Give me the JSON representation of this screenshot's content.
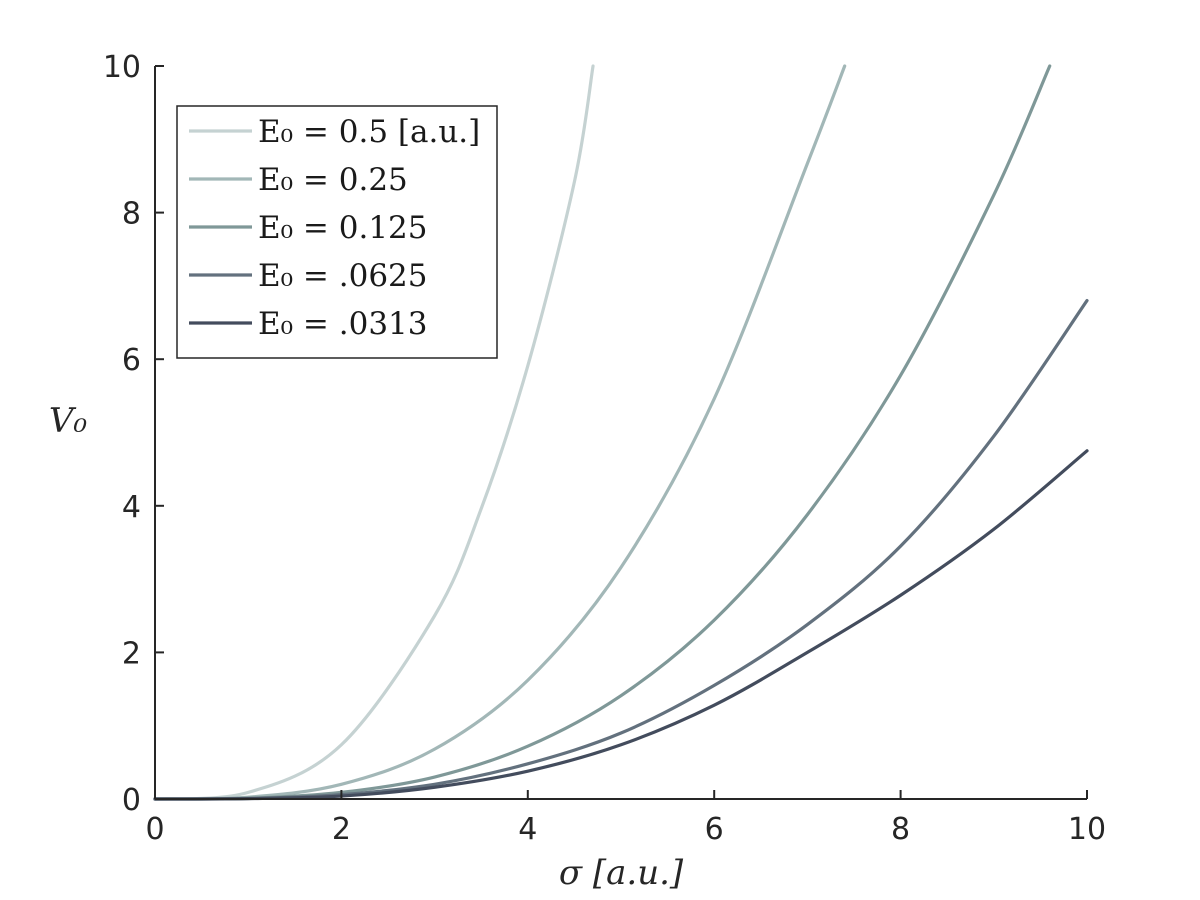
{
  "chart_data": {
    "type": "line",
    "xlabel": "σ [a.u.]",
    "ylabel": "V₀",
    "xlim": [
      0,
      10
    ],
    "ylim": [
      0,
      10
    ],
    "x_ticks": [
      "0",
      "2",
      "4",
      "6",
      "8",
      "10"
    ],
    "y_ticks": [
      "0",
      "2",
      "4",
      "6",
      "8",
      "10"
    ],
    "grid": false,
    "legend_position": "top-left",
    "series": [
      {
        "name": "E₀ = 0.5 [a.u.]",
        "color": "#c5d2d2",
        "x": [
          0,
          1,
          2,
          3,
          3.5,
          4,
          4.5,
          4.7
        ],
        "y": [
          0,
          0.09,
          0.74,
          2.5,
          3.96,
          5.91,
          8.42,
          10.0
        ]
      },
      {
        "name": "E₀ = 0.25",
        "color": "#a2b7b7",
        "x": [
          0,
          1,
          2,
          3,
          4,
          5,
          6,
          7,
          7.4
        ],
        "y": [
          0,
          0.025,
          0.2,
          0.68,
          1.62,
          3.16,
          5.46,
          8.67,
          10.0
        ]
      },
      {
        "name": "E₀ = 0.125",
        "color": "#7f9898",
        "x": [
          0,
          1,
          2,
          3,
          4,
          5,
          6,
          7,
          8,
          9,
          9.6
        ],
        "y": [
          0,
          0.01,
          0.09,
          0.3,
          0.72,
          1.41,
          2.44,
          3.88,
          5.78,
          8.24,
          10.0
        ]
      },
      {
        "name": "E₀ = .0625",
        "color": "#63717e",
        "x": [
          0,
          1,
          2,
          3,
          4,
          5,
          6,
          7,
          8,
          9,
          10
        ],
        "y": [
          0,
          0.007,
          0.06,
          0.2,
          0.48,
          0.9,
          1.55,
          2.38,
          3.45,
          4.95,
          6.8
        ]
      },
      {
        "name": "E₀ = .0313",
        "color": "#434c5d",
        "x": [
          0,
          1,
          2,
          3,
          4,
          5,
          6,
          7,
          8,
          9,
          10
        ],
        "y": [
          0,
          0.005,
          0.04,
          0.16,
          0.38,
          0.74,
          1.28,
          2.0,
          2.78,
          3.68,
          4.75
        ]
      }
    ]
  }
}
